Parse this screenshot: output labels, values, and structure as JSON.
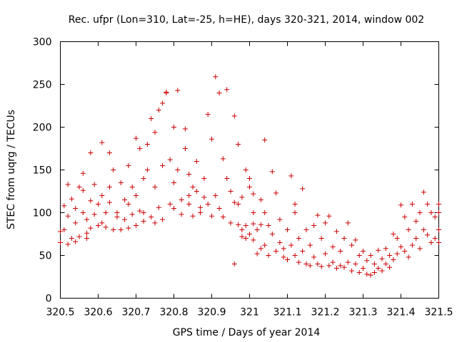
{
  "chart_data": {
    "type": "scatter",
    "title": "Rec. ufpr (Lon=310, Lat=-25, h=HE), days 320-321, 2014, window 002",
    "xlabel": "GPS time / Days of year 2014",
    "ylabel": "STEC from uqrg / TECUs",
    "xlim": [
      320.5,
      321.5
    ],
    "ylim": [
      0,
      300
    ],
    "xticks": [
      320.5,
      320.6,
      320.7,
      320.8,
      320.9,
      321.0,
      321.1,
      321.2,
      321.3,
      321.4,
      321.5
    ],
    "xtick_labels": [
      "320.5",
      "320.6",
      "320.7",
      "320.8",
      "320.9",
      "321",
      "321.1",
      "321.2",
      "321.3",
      "321.4",
      "321.5"
    ],
    "yticks": [
      0,
      50,
      100,
      150,
      200,
      250,
      300
    ],
    "ytick_labels": [
      "0",
      "50",
      "100",
      "150",
      "200",
      "250",
      "300"
    ],
    "marker": "+",
    "color": "#cc0000",
    "grid": false,
    "series": [
      {
        "name": "STEC",
        "points": [
          [
            320.5,
            78
          ],
          [
            320.5,
            65
          ],
          [
            320.51,
            108
          ],
          [
            320.51,
            80
          ],
          [
            320.52,
            63
          ],
          [
            320.52,
            96
          ],
          [
            320.52,
            133
          ],
          [
            320.53,
            70
          ],
          [
            320.53,
            116
          ],
          [
            320.54,
            66
          ],
          [
            320.54,
            105
          ],
          [
            320.54,
            88
          ],
          [
            320.55,
            130
          ],
          [
            320.55,
            72
          ],
          [
            320.56,
            146
          ],
          [
            320.56,
            126
          ],
          [
            320.56,
            100
          ],
          [
            320.57,
            76
          ],
          [
            320.57,
            92
          ],
          [
            320.57,
            70
          ],
          [
            320.58,
            170
          ],
          [
            320.58,
            114
          ],
          [
            320.58,
            82
          ],
          [
            320.59,
            98
          ],
          [
            320.59,
            133
          ],
          [
            320.6,
            85
          ],
          [
            320.6,
            110
          ],
          [
            320.61,
            182
          ],
          [
            320.61,
            120
          ],
          [
            320.61,
            88
          ],
          [
            320.62,
            100
          ],
          [
            320.62,
            83
          ],
          [
            320.63,
            170
          ],
          [
            320.63,
            130
          ],
          [
            320.63,
            112
          ],
          [
            320.64,
            80
          ],
          [
            320.64,
            150
          ],
          [
            320.65,
            100
          ],
          [
            320.65,
            95
          ],
          [
            320.66,
            80
          ],
          [
            320.66,
            135
          ],
          [
            320.67,
            115
          ],
          [
            320.67,
            92
          ],
          [
            320.68,
            82
          ],
          [
            320.68,
            155
          ],
          [
            320.68,
            110
          ],
          [
            320.69,
            130
          ],
          [
            320.69,
            98
          ],
          [
            320.7,
            187
          ],
          [
            320.7,
            120
          ],
          [
            320.7,
            85
          ],
          [
            320.71,
            175
          ],
          [
            320.71,
            102
          ],
          [
            320.72,
            140
          ],
          [
            320.72,
            100
          ],
          [
            320.72,
            90
          ],
          [
            320.73,
            180
          ],
          [
            320.73,
            150
          ],
          [
            320.74,
            210
          ],
          [
            320.74,
            95
          ],
          [
            320.75,
            194
          ],
          [
            320.75,
            130
          ],
          [
            320.75,
            88
          ],
          [
            320.76,
            106
          ],
          [
            320.76,
            220
          ],
          [
            320.77,
            228
          ],
          [
            320.77,
            155
          ],
          [
            320.77,
            92
          ],
          [
            320.78,
            240
          ],
          [
            320.78,
            241
          ],
          [
            320.79,
            162
          ],
          [
            320.79,
            110
          ],
          [
            320.8,
            200
          ],
          [
            320.8,
            135
          ],
          [
            320.8,
            105
          ],
          [
            320.81,
            243
          ],
          [
            320.81,
            150
          ],
          [
            320.82,
            115
          ],
          [
            320.82,
            98
          ],
          [
            320.83,
            198
          ],
          [
            320.83,
            175
          ],
          [
            320.84,
            145
          ],
          [
            320.84,
            120
          ],
          [
            320.84,
            110
          ],
          [
            320.85,
            130
          ],
          [
            320.85,
            96
          ],
          [
            320.86,
            160
          ],
          [
            320.86,
            125
          ],
          [
            320.87,
            106
          ],
          [
            320.87,
            100
          ],
          [
            320.88,
            140
          ],
          [
            320.88,
            118
          ],
          [
            320.89,
            215
          ],
          [
            320.89,
            110
          ],
          [
            320.9,
            186
          ],
          [
            320.9,
            96
          ],
          [
            320.91,
            259
          ],
          [
            320.91,
            120
          ],
          [
            320.92,
            240
          ],
          [
            320.92,
            105
          ],
          [
            320.93,
            163
          ],
          [
            320.93,
            95
          ],
          [
            320.94,
            244
          ],
          [
            320.94,
            140
          ],
          [
            320.95,
            125
          ],
          [
            320.95,
            88
          ],
          [
            320.96,
            213
          ],
          [
            320.96,
            112
          ],
          [
            320.97,
            180
          ],
          [
            320.97,
            86
          ],
          [
            320.98,
            118
          ],
          [
            320.98,
            80
          ],
          [
            320.99,
            150
          ],
          [
            320.99,
            85
          ],
          [
            321.0,
            130
          ],
          [
            321.0,
            75
          ],
          [
            321.01,
            100
          ],
          [
            321.01,
            87
          ],
          [
            321.02,
            80
          ],
          [
            321.03,
            86
          ],
          [
            320.96,
            40
          ],
          [
            320.97,
            110
          ],
          [
            320.98,
            72
          ],
          [
            320.99,
            70
          ],
          [
            321.0,
            140
          ],
          [
            321.01,
            122
          ],
          [
            321.01,
            68
          ],
          [
            321.02,
            52
          ],
          [
            321.03,
            115
          ],
          [
            321.03,
            58
          ],
          [
            321.04,
            185
          ],
          [
            321.04,
            100
          ],
          [
            321.04,
            62
          ],
          [
            321.05,
            85
          ],
          [
            321.05,
            50
          ],
          [
            321.06,
            148
          ],
          [
            321.06,
            75
          ],
          [
            321.07,
            55
          ],
          [
            321.07,
            123
          ],
          [
            321.08,
            92
          ],
          [
            321.08,
            65
          ],
          [
            321.09,
            58
          ],
          [
            321.09,
            48
          ],
          [
            321.1,
            80
          ],
          [
            321.1,
            45
          ],
          [
            321.11,
            143
          ],
          [
            321.11,
            62
          ],
          [
            321.12,
            110
          ],
          [
            321.12,
            100
          ],
          [
            321.12,
            50
          ],
          [
            321.13,
            70
          ],
          [
            321.13,
            42
          ],
          [
            321.14,
            128
          ],
          [
            321.14,
            55
          ],
          [
            321.15,
            80
          ],
          [
            321.15,
            40
          ],
          [
            321.16,
            62
          ],
          [
            321.16,
            38
          ],
          [
            321.17,
            85
          ],
          [
            321.17,
            48
          ],
          [
            321.18,
            40
          ],
          [
            321.18,
            97
          ],
          [
            321.19,
            70
          ],
          [
            321.19,
            37
          ],
          [
            321.2,
            88
          ],
          [
            321.2,
            52
          ],
          [
            321.21,
            96
          ],
          [
            321.21,
            38
          ],
          [
            321.22,
            60
          ],
          [
            321.22,
            42
          ],
          [
            321.23,
            78
          ],
          [
            321.23,
            35
          ],
          [
            321.24,
            55
          ],
          [
            321.24,
            38
          ],
          [
            321.25,
            70
          ],
          [
            321.25,
            36
          ],
          [
            321.26,
            88
          ],
          [
            321.26,
            42
          ],
          [
            321.27,
            62
          ],
          [
            321.27,
            32
          ],
          [
            321.28,
            68
          ],
          [
            321.28,
            40
          ],
          [
            321.29,
            50
          ],
          [
            321.29,
            30
          ],
          [
            321.3,
            55
          ],
          [
            321.3,
            35
          ],
          [
            321.31,
            44
          ],
          [
            321.31,
            28
          ],
          [
            321.32,
            50
          ],
          [
            321.32,
            27
          ],
          [
            321.33,
            40
          ],
          [
            321.33,
            30
          ],
          [
            321.34,
            56
          ],
          [
            321.34,
            35
          ],
          [
            321.35,
            46
          ],
          [
            321.35,
            32
          ],
          [
            321.36,
            58
          ],
          [
            321.36,
            40
          ],
          [
            321.37,
            50
          ],
          [
            321.37,
            36
          ],
          [
            321.38,
            75
          ],
          [
            321.38,
            45
          ],
          [
            321.39,
            70
          ],
          [
            321.39,
            52
          ],
          [
            321.4,
            109
          ],
          [
            321.4,
            60
          ],
          [
            321.41,
            95
          ],
          [
            321.41,
            55
          ],
          [
            321.42,
            80
          ],
          [
            321.42,
            48
          ],
          [
            321.43,
            110
          ],
          [
            321.43,
            62
          ],
          [
            321.44,
            90
          ],
          [
            321.44,
            70
          ],
          [
            321.45,
            100
          ],
          [
            321.45,
            58
          ],
          [
            321.46,
            124
          ],
          [
            321.46,
            80
          ],
          [
            321.47,
            110
          ],
          [
            321.47,
            74
          ],
          [
            321.48,
            100
          ],
          [
            321.48,
            65
          ],
          [
            321.49,
            95
          ],
          [
            321.49,
            70
          ],
          [
            321.5,
            110
          ],
          [
            321.5,
            80
          ],
          [
            321.5,
            100
          ],
          [
            321.5,
            65
          ]
        ]
      }
    ]
  }
}
